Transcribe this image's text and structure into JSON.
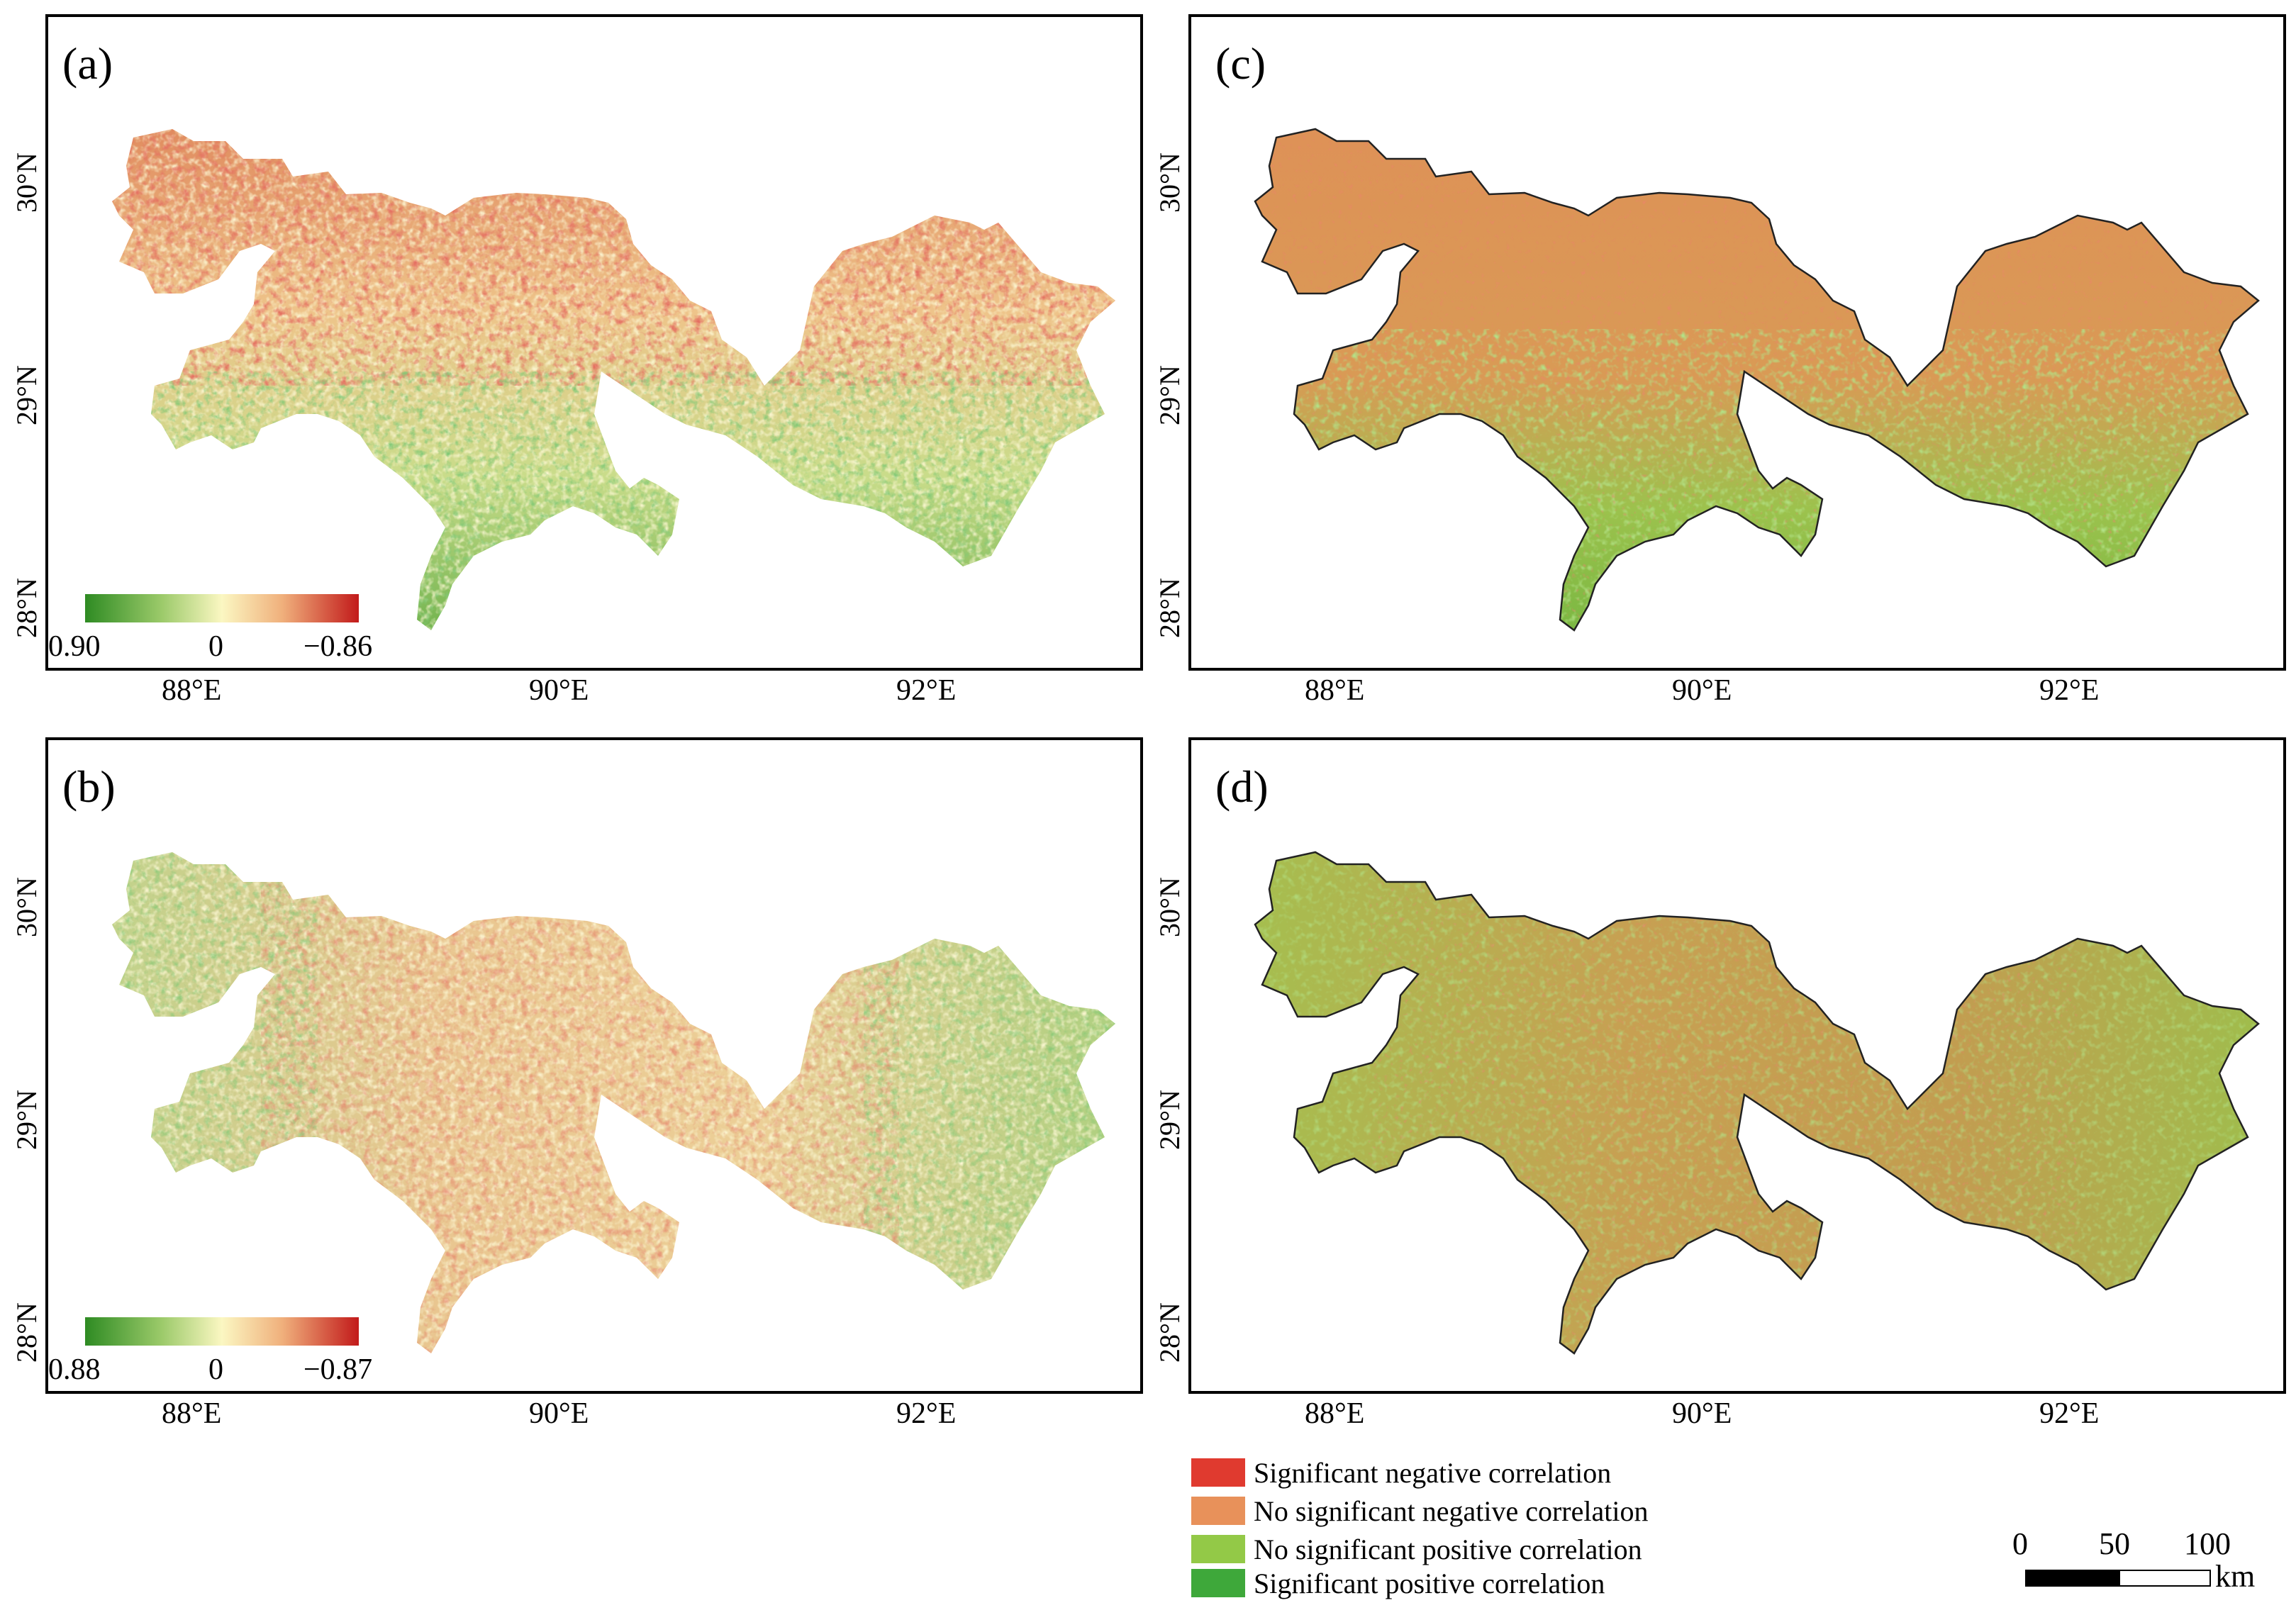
{
  "panels": [
    {
      "id": "a",
      "label": "(a)",
      "type": "continuous",
      "colorbar": {
        "min_label": "0.90",
        "mid_label": "0",
        "max_label": "−0.86"
      }
    },
    {
      "id": "b",
      "label": "(b)",
      "type": "continuous",
      "colorbar": {
        "min_label": "0.88",
        "mid_label": "0",
        "max_label": "−0.87"
      }
    },
    {
      "id": "c",
      "label": "(c)",
      "type": "categorical"
    },
    {
      "id": "d",
      "label": "(d)",
      "type": "categorical"
    }
  ],
  "axes": {
    "latitude_labels": [
      "30°N",
      "29°N",
      "28°N"
    ],
    "longitude_labels": [
      "88°E",
      "90°E",
      "92°E"
    ]
  },
  "legend": {
    "items": [
      {
        "label": "Significant negative correlation",
        "color": "#e03a2f"
      },
      {
        "label": "No significant negative correlation",
        "color": "#e8915a"
      },
      {
        "label": "No significant positive correlation",
        "color": "#93c947"
      },
      {
        "label": "Significant positive correlation",
        "color": "#3ea83a"
      }
    ]
  },
  "scalebar": {
    "ticks": [
      "0",
      "50",
      "100"
    ],
    "unit": "km"
  }
}
